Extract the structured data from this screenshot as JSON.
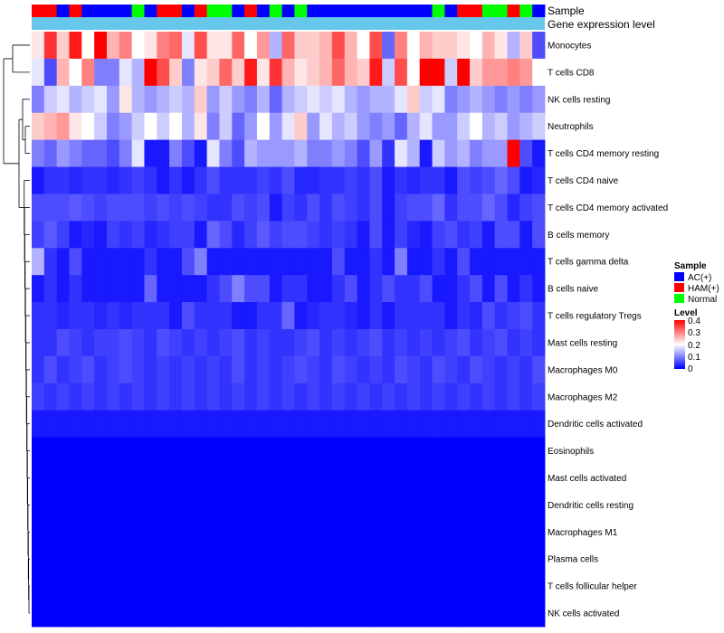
{
  "chart_data": {
    "type": "heatmap",
    "annotation_labels": [
      "Sample",
      "Gene expression level"
    ],
    "rows": [
      "Monocytes",
      "T cells CD8",
      "NK cells resting",
      "Neutrophils",
      "T cells CD4 memory resting",
      "T cells CD4 naive",
      "T cells CD4 memory activated",
      "B cells memory",
      "T cells gamma delta",
      "B cells naive",
      "T cells regulatory  Tregs",
      "Mast cells resting",
      "Macrophages M0",
      "Macrophages M2",
      "Dendritic cells activated",
      "Eosinophils",
      "Mast cells activated",
      "Dendritic cells resting",
      "Macrophages M1",
      "Plasma cells",
      "T cells follicular helper",
      "NK cells activated"
    ],
    "sample_groups": [
      "HAM",
      "HAM",
      "AC",
      "HAM",
      "AC",
      "AC",
      "AC",
      "AC",
      "Normal",
      "AC",
      "HAM",
      "HAM",
      "AC",
      "HAM",
      "Normal",
      "Normal",
      "AC",
      "HAM",
      "AC",
      "Normal",
      "AC",
      "Normal",
      "AC",
      "AC",
      "AC",
      "AC",
      "AC",
      "AC",
      "AC",
      "AC",
      "AC",
      "AC",
      "Normal",
      "AC",
      "HAM",
      "HAM",
      "Normal",
      "Normal",
      "HAM",
      "Normal",
      "AC"
    ],
    "values": [
      [
        0.22,
        0.36,
        0.24,
        0.38,
        0.2,
        0.4,
        0.26,
        0.3,
        0.2,
        0.22,
        0.3,
        0.32,
        0.18,
        0.34,
        0.22,
        0.22,
        0.32,
        0.2,
        0.28,
        0.14,
        0.32,
        0.24,
        0.24,
        0.26,
        0.34,
        0.26,
        0.2,
        0.34,
        0.08,
        0.3,
        0.2,
        0.26,
        0.24,
        0.24,
        0.22,
        0.2,
        0.26,
        0.22,
        0.14,
        0.24,
        0.06
      ],
      [
        0.18,
        0.06,
        0.26,
        0.2,
        0.3,
        0.1,
        0.1,
        0.18,
        0.14,
        0.4,
        0.34,
        0.24,
        0.1,
        0.22,
        0.24,
        0.32,
        0.24,
        0.38,
        0.22,
        0.36,
        0.26,
        0.22,
        0.24,
        0.26,
        0.32,
        0.26,
        0.24,
        0.38,
        0.16,
        0.34,
        0.2,
        0.4,
        0.4,
        0.16,
        0.4,
        0.24,
        0.28,
        0.28,
        0.3,
        0.28,
        0.2
      ],
      [
        0.1,
        0.16,
        0.18,
        0.14,
        0.16,
        0.18,
        0.12,
        0.22,
        0.14,
        0.12,
        0.14,
        0.16,
        0.14,
        0.24,
        0.12,
        0.16,
        0.12,
        0.1,
        0.14,
        0.08,
        0.14,
        0.16,
        0.18,
        0.16,
        0.18,
        0.14,
        0.12,
        0.14,
        0.14,
        0.18,
        0.24,
        0.16,
        0.18,
        0.1,
        0.12,
        0.14,
        0.12,
        0.1,
        0.12,
        0.1,
        0.12
      ],
      [
        0.24,
        0.26,
        0.28,
        0.22,
        0.2,
        0.16,
        0.1,
        0.12,
        0.16,
        0.2,
        0.16,
        0.2,
        0.14,
        0.22,
        0.1,
        0.16,
        0.08,
        0.12,
        0.2,
        0.12,
        0.18,
        0.24,
        0.12,
        0.18,
        0.14,
        0.16,
        0.12,
        0.1,
        0.12,
        0.08,
        0.14,
        0.18,
        0.12,
        0.12,
        0.16,
        0.2,
        0.14,
        0.16,
        0.12,
        0.14,
        0.16
      ],
      [
        0.1,
        0.08,
        0.12,
        0.1,
        0.08,
        0.08,
        0.06,
        0.1,
        0.18,
        0.02,
        0.02,
        0.1,
        0.06,
        0.02,
        0.18,
        0.1,
        0.06,
        0.14,
        0.12,
        0.12,
        0.12,
        0.14,
        0.1,
        0.1,
        0.12,
        0.1,
        0.06,
        0.12,
        0.04,
        0.18,
        0.14,
        0.02,
        0.16,
        0.12,
        0.14,
        0.1,
        0.12,
        0.12,
        0.4,
        0.06,
        0.02
      ],
      [
        0.02,
        0.04,
        0.04,
        0.03,
        0.04,
        0.04,
        0.03,
        0.04,
        0.05,
        0.04,
        0.02,
        0.04,
        0.02,
        0.04,
        0.06,
        0.04,
        0.04,
        0.04,
        0.05,
        0.04,
        0.06,
        0.03,
        0.03,
        0.04,
        0.04,
        0.05,
        0.04,
        0.06,
        0.02,
        0.04,
        0.03,
        0.04,
        0.04,
        0.02,
        0.06,
        0.05,
        0.06,
        0.08,
        0.06,
        0.02,
        0.03
      ],
      [
        0.06,
        0.06,
        0.06,
        0.07,
        0.06,
        0.05,
        0.06,
        0.06,
        0.06,
        0.05,
        0.06,
        0.05,
        0.06,
        0.05,
        0.04,
        0.04,
        0.06,
        0.05,
        0.06,
        0.02,
        0.05,
        0.04,
        0.06,
        0.04,
        0.06,
        0.05,
        0.04,
        0.06,
        0.02,
        0.05,
        0.06,
        0.06,
        0.08,
        0.04,
        0.06,
        0.06,
        0.08,
        0.06,
        0.03,
        0.05,
        0.06
      ],
      [
        0.05,
        0.07,
        0.05,
        0.02,
        0.03,
        0.02,
        0.05,
        0.04,
        0.05,
        0.03,
        0.04,
        0.05,
        0.05,
        0.02,
        0.08,
        0.06,
        0.03,
        0.05,
        0.07,
        0.05,
        0.06,
        0.06,
        0.05,
        0.04,
        0.05,
        0.04,
        0.02,
        0.06,
        0.02,
        0.05,
        0.03,
        0.02,
        0.05,
        0.06,
        0.04,
        0.05,
        0.02,
        0.06,
        0.06,
        0.02,
        0.06
      ],
      [
        0.14,
        0.04,
        0.02,
        0.06,
        0.02,
        0.02,
        0.02,
        0.02,
        0.02,
        0.04,
        0.02,
        0.02,
        0.06,
        0.1,
        0.02,
        0.02,
        0.02,
        0.02,
        0.02,
        0.02,
        0.02,
        0.02,
        0.02,
        0.02,
        0.06,
        0.02,
        0.02,
        0.04,
        0.02,
        0.1,
        0.02,
        0.02,
        0.04,
        0.02,
        0.06,
        0.02,
        0.02,
        0.02,
        0.02,
        0.02,
        0.02
      ],
      [
        0.02,
        0.04,
        0.02,
        0.04,
        0.02,
        0.02,
        0.02,
        0.02,
        0.02,
        0.08,
        0.02,
        0.02,
        0.02,
        0.02,
        0.04,
        0.06,
        0.1,
        0.06,
        0.06,
        0.02,
        0.04,
        0.04,
        0.02,
        0.02,
        0.04,
        0.06,
        0.02,
        0.04,
        0.06,
        0.04,
        0.04,
        0.06,
        0.02,
        0.02,
        0.04,
        0.06,
        0.02,
        0.06,
        0.02,
        0.04,
        0.02
      ],
      [
        0.04,
        0.04,
        0.03,
        0.04,
        0.04,
        0.03,
        0.04,
        0.03,
        0.04,
        0.04,
        0.04,
        0.02,
        0.06,
        0.04,
        0.04,
        0.04,
        0.02,
        0.02,
        0.04,
        0.04,
        0.08,
        0.02,
        0.03,
        0.04,
        0.04,
        0.03,
        0.02,
        0.04,
        0.02,
        0.04,
        0.04,
        0.04,
        0.04,
        0.02,
        0.04,
        0.03,
        0.06,
        0.04,
        0.05,
        0.06,
        0.04
      ],
      [
        0.04,
        0.04,
        0.06,
        0.05,
        0.04,
        0.05,
        0.05,
        0.06,
        0.05,
        0.04,
        0.06,
        0.05,
        0.04,
        0.05,
        0.04,
        0.05,
        0.06,
        0.04,
        0.05,
        0.04,
        0.04,
        0.05,
        0.06,
        0.04,
        0.05,
        0.04,
        0.05,
        0.06,
        0.04,
        0.05,
        0.04,
        0.05,
        0.04,
        0.05,
        0.06,
        0.04,
        0.05,
        0.06,
        0.04,
        0.05,
        0.04
      ],
      [
        0.04,
        0.06,
        0.04,
        0.05,
        0.06,
        0.04,
        0.05,
        0.06,
        0.05,
        0.04,
        0.05,
        0.04,
        0.05,
        0.04,
        0.05,
        0.04,
        0.06,
        0.04,
        0.05,
        0.04,
        0.05,
        0.06,
        0.05,
        0.04,
        0.06,
        0.05,
        0.04,
        0.05,
        0.04,
        0.06,
        0.05,
        0.04,
        0.06,
        0.05,
        0.04,
        0.06,
        0.05,
        0.04,
        0.05,
        0.04,
        0.06
      ],
      [
        0.05,
        0.04,
        0.05,
        0.04,
        0.05,
        0.04,
        0.05,
        0.04,
        0.05,
        0.04,
        0.05,
        0.04,
        0.05,
        0.04,
        0.05,
        0.04,
        0.05,
        0.04,
        0.05,
        0.04,
        0.05,
        0.04,
        0.05,
        0.04,
        0.05,
        0.04,
        0.05,
        0.04,
        0.05,
        0.04,
        0.05,
        0.04,
        0.05,
        0.04,
        0.05,
        0.04,
        0.05,
        0.04,
        0.05,
        0.04,
        0.05
      ],
      [
        0.02,
        0.02,
        0.02,
        0.02,
        0.02,
        0.02,
        0.02,
        0.02,
        0.02,
        0.02,
        0.02,
        0.02,
        0.02,
        0.02,
        0.02,
        0.02,
        0.02,
        0.02,
        0.02,
        0.02,
        0.02,
        0.02,
        0.02,
        0.02,
        0.02,
        0.02,
        0.02,
        0.02,
        0.02,
        0.02,
        0.02,
        0.02,
        0.02,
        0.02,
        0.02,
        0.02,
        0.02,
        0.02,
        0.02,
        0.02,
        0.02
      ],
      [
        0,
        0,
        0,
        0,
        0,
        0,
        0,
        0,
        0,
        0,
        0,
        0,
        0,
        0,
        0,
        0,
        0,
        0,
        0,
        0,
        0,
        0,
        0,
        0,
        0,
        0,
        0,
        0,
        0,
        0,
        0,
        0,
        0,
        0,
        0,
        0,
        0,
        0,
        0,
        0,
        0
      ],
      [
        0,
        0,
        0,
        0,
        0,
        0,
        0,
        0,
        0,
        0,
        0,
        0,
        0,
        0,
        0,
        0,
        0,
        0,
        0,
        0,
        0,
        0,
        0,
        0,
        0,
        0,
        0,
        0,
        0,
        0,
        0,
        0,
        0,
        0,
        0,
        0,
        0,
        0,
        0,
        0,
        0
      ],
      [
        0,
        0,
        0,
        0,
        0,
        0,
        0,
        0,
        0,
        0,
        0,
        0,
        0,
        0,
        0,
        0,
        0,
        0,
        0,
        0,
        0,
        0,
        0,
        0,
        0,
        0,
        0,
        0,
        0,
        0,
        0,
        0,
        0,
        0,
        0,
        0,
        0,
        0,
        0,
        0,
        0
      ],
      [
        0,
        0,
        0,
        0,
        0,
        0,
        0,
        0,
        0,
        0,
        0,
        0,
        0,
        0,
        0,
        0,
        0,
        0,
        0,
        0,
        0,
        0,
        0,
        0,
        0,
        0,
        0,
        0,
        0,
        0,
        0,
        0,
        0,
        0,
        0,
        0,
        0,
        0,
        0,
        0,
        0
      ],
      [
        0,
        0,
        0,
        0,
        0,
        0,
        0,
        0,
        0,
        0,
        0,
        0,
        0,
        0,
        0,
        0,
        0,
        0,
        0,
        0,
        0,
        0,
        0,
        0,
        0,
        0,
        0,
        0,
        0,
        0,
        0,
        0,
        0,
        0,
        0,
        0,
        0,
        0,
        0,
        0,
        0
      ],
      [
        0,
        0,
        0,
        0,
        0,
        0,
        0,
        0,
        0,
        0,
        0,
        0,
        0,
        0,
        0,
        0,
        0,
        0,
        0,
        0,
        0,
        0,
        0,
        0,
        0,
        0,
        0,
        0,
        0,
        0,
        0,
        0,
        0,
        0,
        0,
        0,
        0,
        0,
        0,
        0,
        0
      ],
      [
        0,
        0,
        0,
        0,
        0,
        0,
        0,
        0,
        0,
        0,
        0,
        0,
        0,
        0,
        0,
        0,
        0,
        0,
        0,
        0,
        0,
        0,
        0,
        0,
        0,
        0,
        0,
        0,
        0,
        0,
        0,
        0,
        0,
        0,
        0,
        0,
        0,
        0,
        0,
        0,
        0
      ]
    ],
    "legend": {
      "sample": {
        "title": "Sample",
        "items": [
          {
            "label": "AC(+)",
            "color": "#0000ff"
          },
          {
            "label": "HAM(+)",
            "color": "#ff0000"
          },
          {
            "label": "Normal",
            "color": "#00ff00"
          }
        ]
      },
      "level": {
        "title": "Level",
        "ticks": [
          "0.4",
          "0.3",
          "0.2",
          "0.1",
          "0"
        ],
        "range": [
          0,
          0.4
        ]
      }
    },
    "colors": {
      "low": "#0000ff",
      "mid": "#ffffff",
      "high": "#ff0000",
      "annotation_bar": "#67c7ea"
    }
  }
}
